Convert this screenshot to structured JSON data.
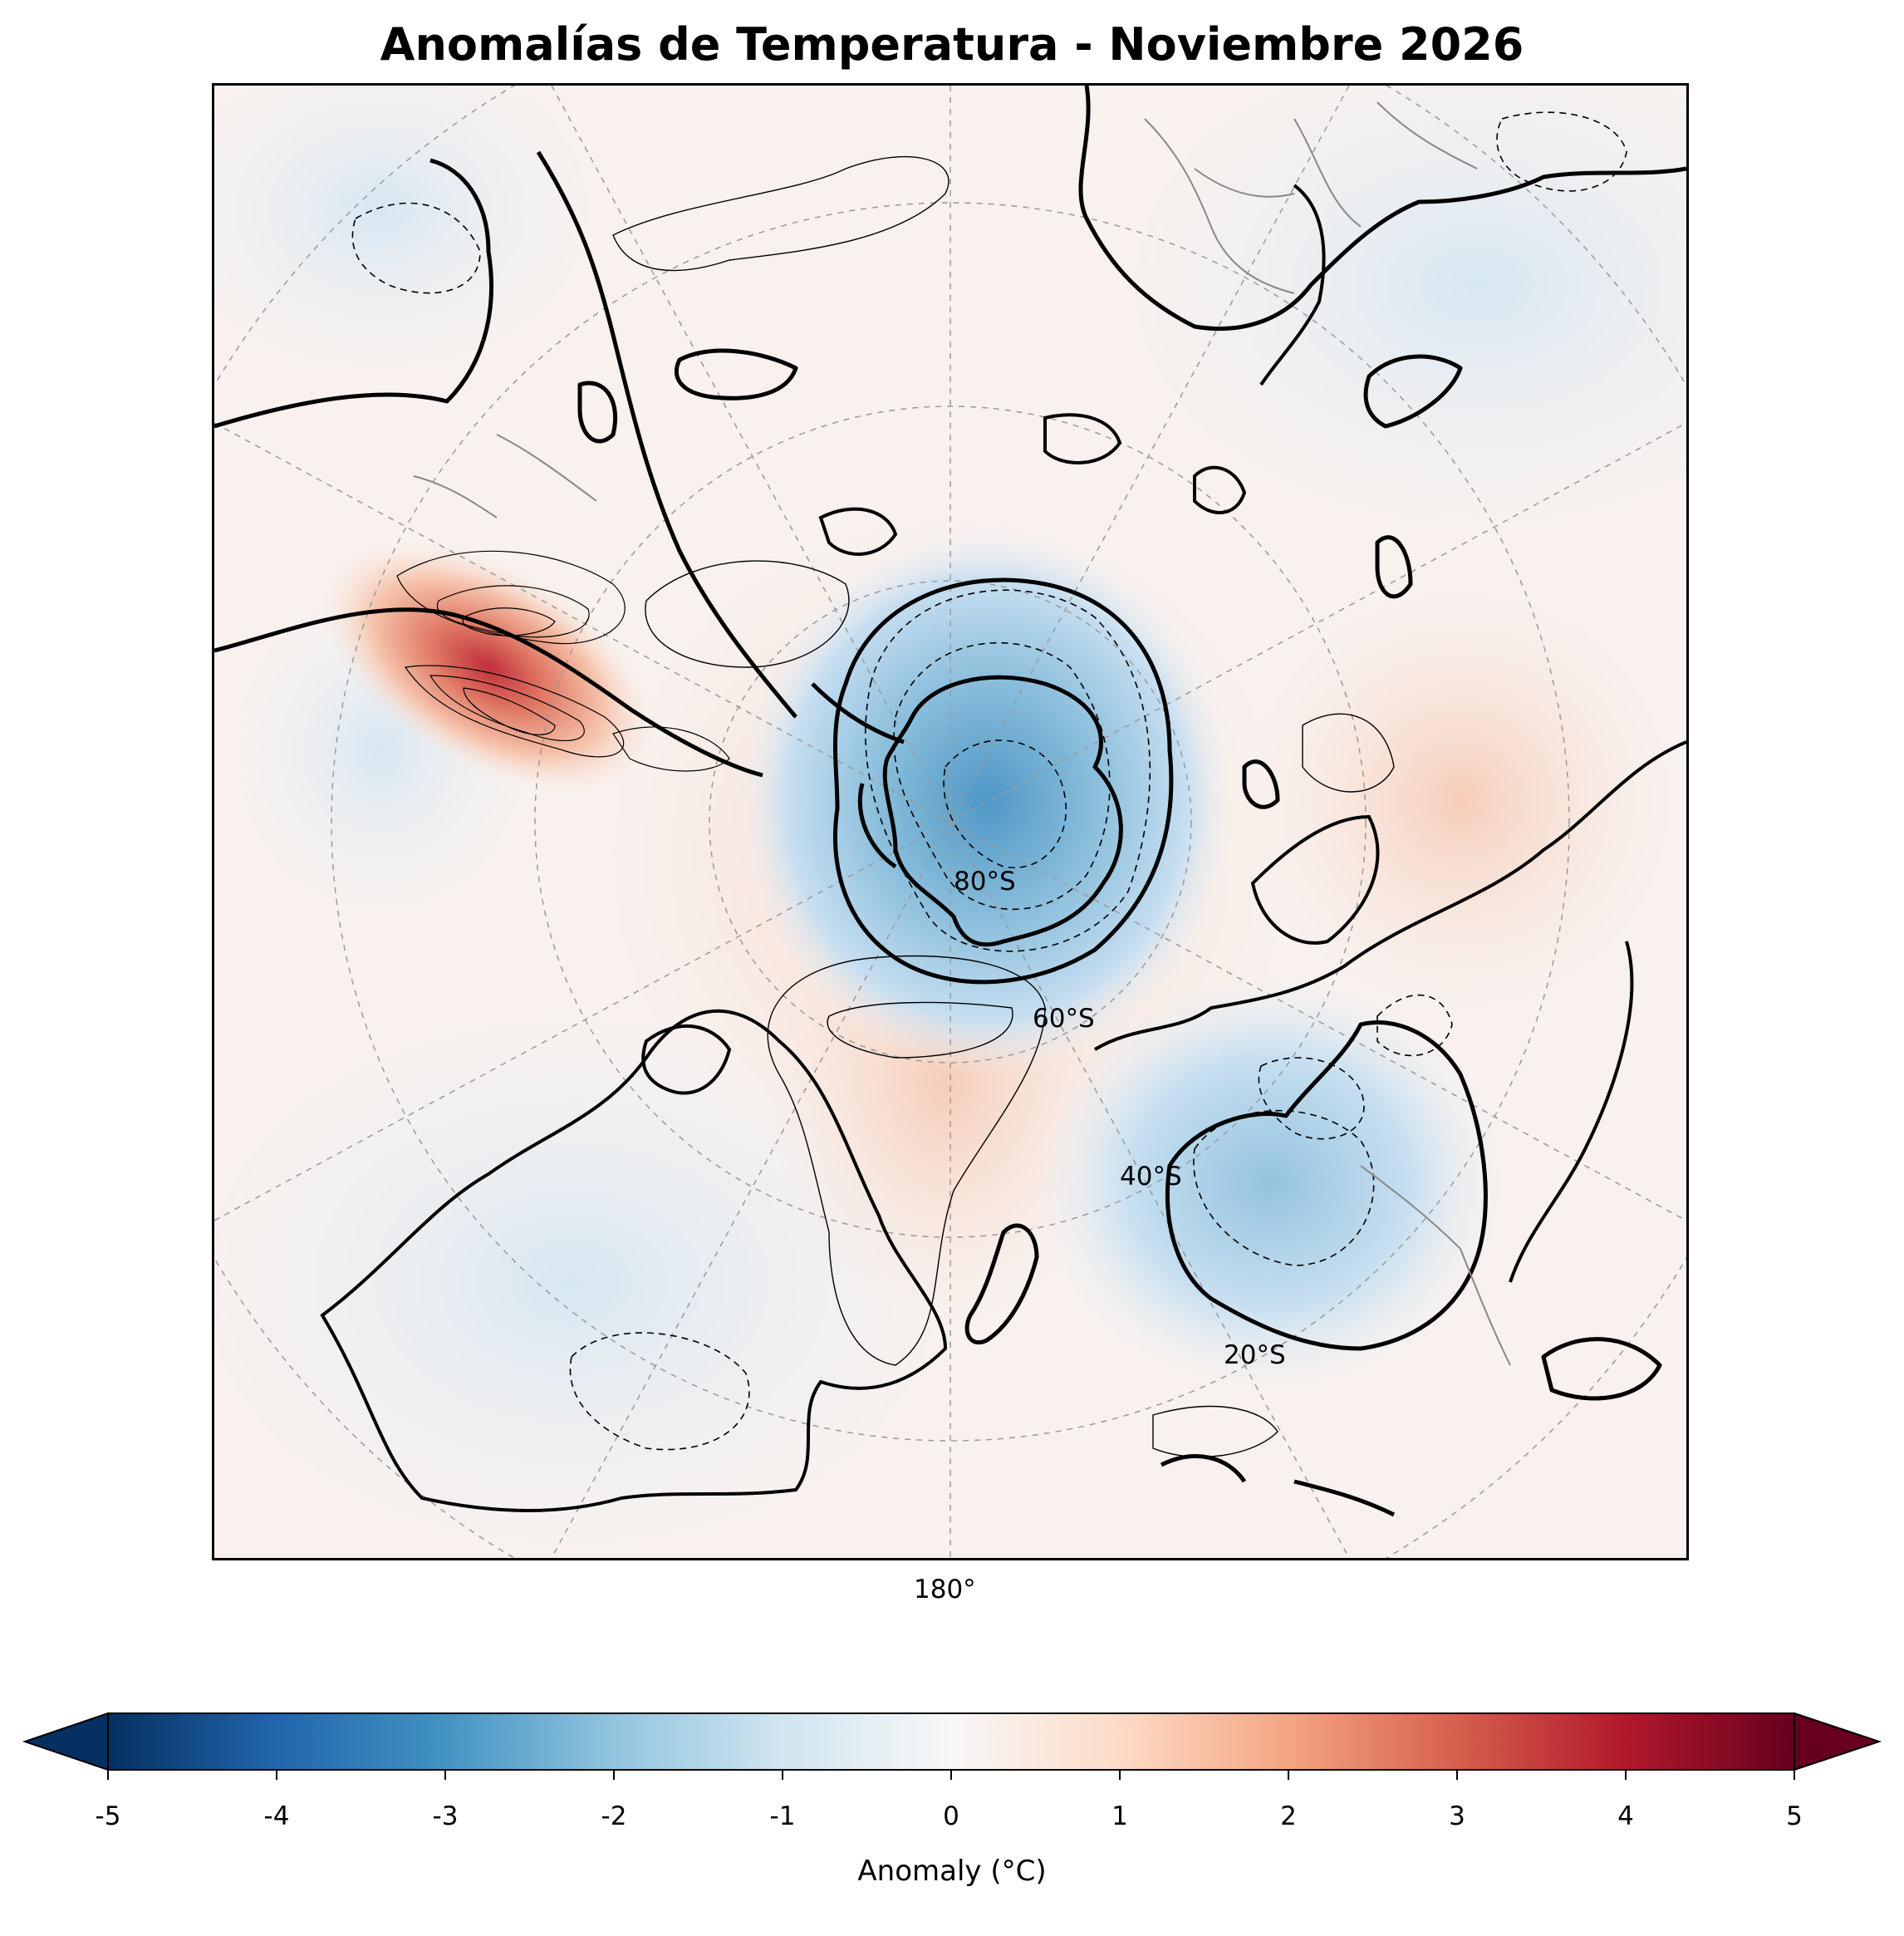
{
  "title": "Anomalías de Temperatura - Noviembre 2026",
  "map": {
    "projection": "south-polar-stereographic",
    "center": "90°S",
    "lat_labels": [
      "80°S",
      "60°S",
      "40°S",
      "20°S"
    ],
    "lon_labels": [
      "180°"
    ]
  },
  "colorbar": {
    "label": "Anomaly (°C)",
    "colormap": "RdBu_r",
    "vmin": -5,
    "vmax": 5,
    "extend": "both",
    "ticks": [
      "-5",
      "-4",
      "-3",
      "-2",
      "-1",
      "0",
      "1",
      "2",
      "3",
      "4",
      "5"
    ],
    "colors": [
      "#053061",
      "#2166ac",
      "#4393c3",
      "#92c5de",
      "#d1e5f0",
      "#f7f7f7",
      "#fddbc7",
      "#f4a582",
      "#d6604d",
      "#b2182b",
      "#67001f"
    ]
  },
  "features": [
    {
      "name": "antarctica-cold-anomaly",
      "value": -2.5
    },
    {
      "name": "south-america-warm-anomaly",
      "value": 3.8
    },
    {
      "name": "australia-cold-anomaly",
      "value": -1.5
    },
    {
      "name": "new-zealand-warm-anomaly",
      "value": 0.8
    }
  ]
}
